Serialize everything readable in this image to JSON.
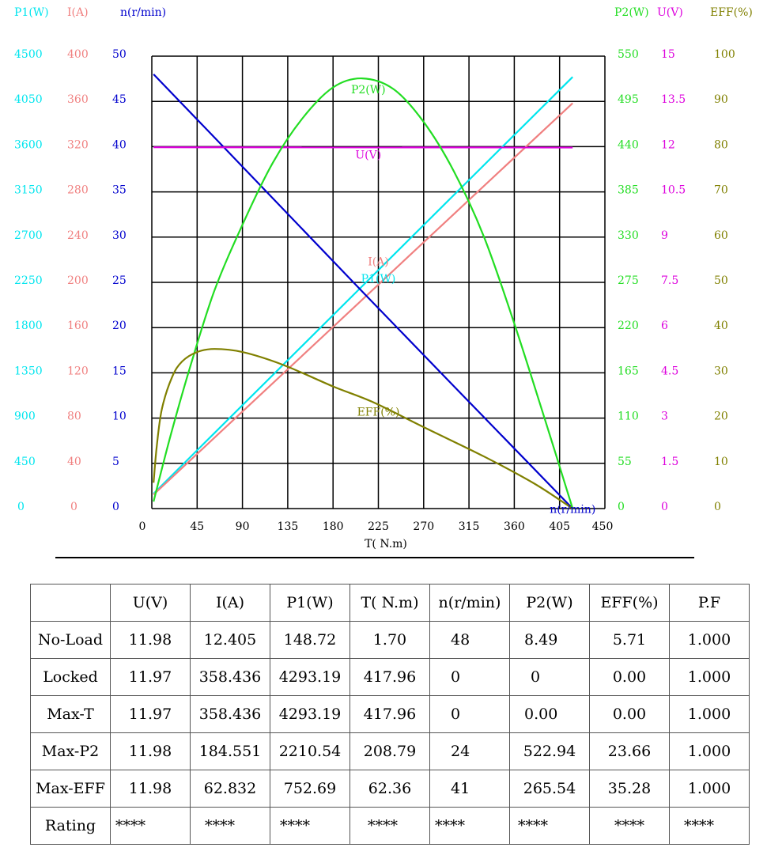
{
  "chart_data": {
    "type": "line",
    "xlabel": "T( N.m)",
    "xlim": [
      0,
      450
    ],
    "x_ticks": [
      "0",
      "45",
      "90",
      "135",
      "180",
      "225",
      "270",
      "315",
      "360",
      "405",
      "450"
    ],
    "axes": {
      "left": [
        {
          "key": "P1",
          "title": "P1(W)",
          "color": "#00e5ee",
          "ticks": [
            "0",
            "450",
            "900",
            "1350",
            "1800",
            "2250",
            "2700",
            "3150",
            "3600",
            "4050",
            "4500"
          ]
        },
        {
          "key": "I",
          "title": "I(A)",
          "color": "#f08080",
          "ticks": [
            "0",
            "40",
            "80",
            "120",
            "160",
            "200",
            "240",
            "280",
            "320",
            "360",
            "400"
          ]
        },
        {
          "key": "n",
          "title": "n(r/min)",
          "color": "#0000cd",
          "ticks": [
            "0",
            "5",
            "10",
            "15",
            "20",
            "25",
            "30",
            "35",
            "40",
            "45",
            "50"
          ]
        }
      ],
      "right": [
        {
          "key": "P2",
          "title": "P2(W)",
          "color": "#22dd22",
          "ticks": [
            "0",
            "55",
            "110",
            "165",
            "220",
            "275",
            "330",
            "385",
            "440",
            "495",
            "550"
          ]
        },
        {
          "key": "U",
          "title": "U(V)",
          "color": "#dd00dd",
          "ticks": [
            "0",
            "1.5",
            "3",
            "4.5",
            "6",
            "7.5",
            "9",
            "10.5",
            "12",
            "13.5",
            "15"
          ]
        },
        {
          "key": "EFF",
          "title": "EFF(%)",
          "color": "#808000",
          "ticks": [
            "0",
            "10",
            "20",
            "30",
            "40",
            "50",
            "60",
            "70",
            "80",
            "90",
            "100"
          ]
        }
      ]
    },
    "series": [
      {
        "name": "P1(W)",
        "axis": "P1",
        "color": "#00e5ee",
        "label_at": [
          225,
          2250
        ],
        "x": [
          1.7,
          62.36,
          208.79,
          417.96
        ],
        "y": [
          148.72,
          752.69,
          2210.54,
          4293.19
        ]
      },
      {
        "name": "I(A)",
        "axis": "I",
        "color": "#f08080",
        "label_at": [
          225,
          215
        ],
        "x": [
          1.7,
          62.36,
          208.79,
          417.96
        ],
        "y": [
          12.405,
          62.832,
          184.551,
          358.436
        ]
      },
      {
        "name": "n(r/min)",
        "axis": "n",
        "color": "#0000cd",
        "label_at": [
          418,
          -0.5
        ],
        "x": [
          1.7,
          62.36,
          208.79,
          417.96
        ],
        "y": [
          48,
          41,
          24,
          0
        ]
      },
      {
        "name": "U(V)",
        "axis": "U",
        "color": "#dd00dd",
        "label_at": [
          215,
          11.6
        ],
        "x": [
          1.7,
          417.96
        ],
        "y": [
          11.98,
          11.97
        ]
      },
      {
        "name": "P2(W)",
        "axis": "P2",
        "color": "#22dd22",
        "label_at": [
          215,
          505
        ],
        "x": [
          1.7,
          20,
          40,
          62.36,
          90,
          120,
          150,
          180,
          208.79,
          240,
          270,
          300,
          330,
          360,
          390,
          417.96
        ],
        "y": [
          8.49,
          95,
          180,
          265.54,
          345,
          420,
          475,
          512,
          522.94,
          510,
          470,
          410,
          330,
          225,
          110,
          0
        ]
      },
      {
        "name": "EFF(%)",
        "axis": "EFF",
        "color": "#808000",
        "label_at": [
          225,
          20.5
        ],
        "x": [
          1.7,
          5,
          10,
          20,
          30,
          45,
          62.36,
          90,
          130,
          180,
          220,
          270,
          330,
          380,
          417.96
        ],
        "y": [
          5.71,
          14,
          22,
          29,
          32.5,
          34.6,
          35.28,
          34.6,
          31.8,
          27,
          23.5,
          18,
          11.5,
          5.5,
          0
        ]
      }
    ]
  },
  "table": {
    "headers": [
      "",
      "U(V)",
      "I(A)",
      "P1(W)",
      "T( N.m)",
      "n(r/min)",
      "P2(W)",
      "EFF(%)",
      "P.F"
    ],
    "rows": [
      [
        "No-Load",
        "11.98",
        "12.405",
        "148.72",
        "1.70",
        "48",
        "8.49",
        "5.71",
        "1.000"
      ],
      [
        "Locked",
        "11.97",
        "358.436",
        "4293.19",
        "417.96",
        "0",
        "0",
        "0.00",
        "1.000"
      ],
      [
        "Max-T",
        "11.97",
        "358.436",
        "4293.19",
        "417.96",
        "0",
        "0.00",
        "0.00",
        "1.000"
      ],
      [
        "Max-P2",
        "11.98",
        "184.551",
        "2210.54",
        "208.79",
        "24",
        "522.94",
        "23.66",
        "1.000"
      ],
      [
        "Max-EFF",
        "11.98",
        "62.832",
        "752.69",
        "62.36",
        "41",
        "265.54",
        "35.28",
        "1.000"
      ],
      [
        "Rating",
        "****",
        "****",
        "****",
        "****",
        "****",
        "****",
        "****",
        "****"
      ]
    ]
  }
}
